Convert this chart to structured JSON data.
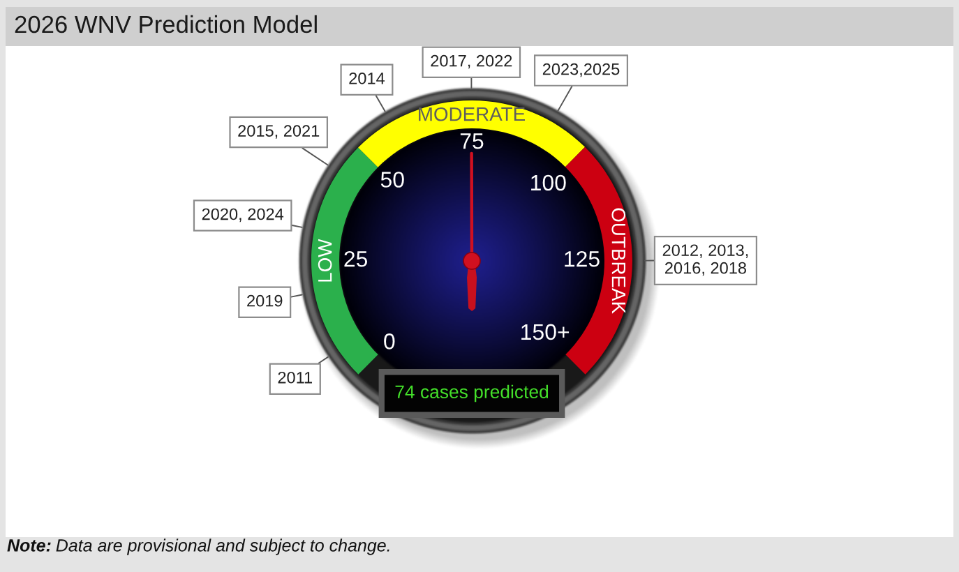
{
  "chart_data": {
    "type": "donut",
    "title": "2026 WNV Prediction Model",
    "categories": [
      "LOW",
      "MODERATE",
      "OUTBREAK"
    ],
    "values": [
      33.3,
      33.3,
      33.4
    ],
    "colors": [
      "#2bb04c",
      "#ffff00",
      "#cc0011"
    ],
    "needle": "MODERATE",
    "annotations": [
      {
        "text": "2011",
        "x": "LOW"
      },
      {
        "text": "2019",
        "x": "LOW"
      },
      {
        "text": "2020, 2024",
        "x": "LOW"
      },
      {
        "text": "2015, 2021",
        "x": "LOW"
      },
      {
        "text": "2014",
        "x": "MODERATE"
      },
      {
        "text": "2017, 2022",
        "x": "MODERATE"
      },
      {
        "text": "2023,2025",
        "x": "MODERATE"
      },
      {
        "text": "2012, 2013, 2016, 2018",
        "x": "OUTBREAK"
      },
      "0",
      "25",
      "50",
      "75",
      "100",
      "125",
      "150+",
      "74 cases predicted",
      "Note: Data are provisional and subject to change."
    ]
  }
}
